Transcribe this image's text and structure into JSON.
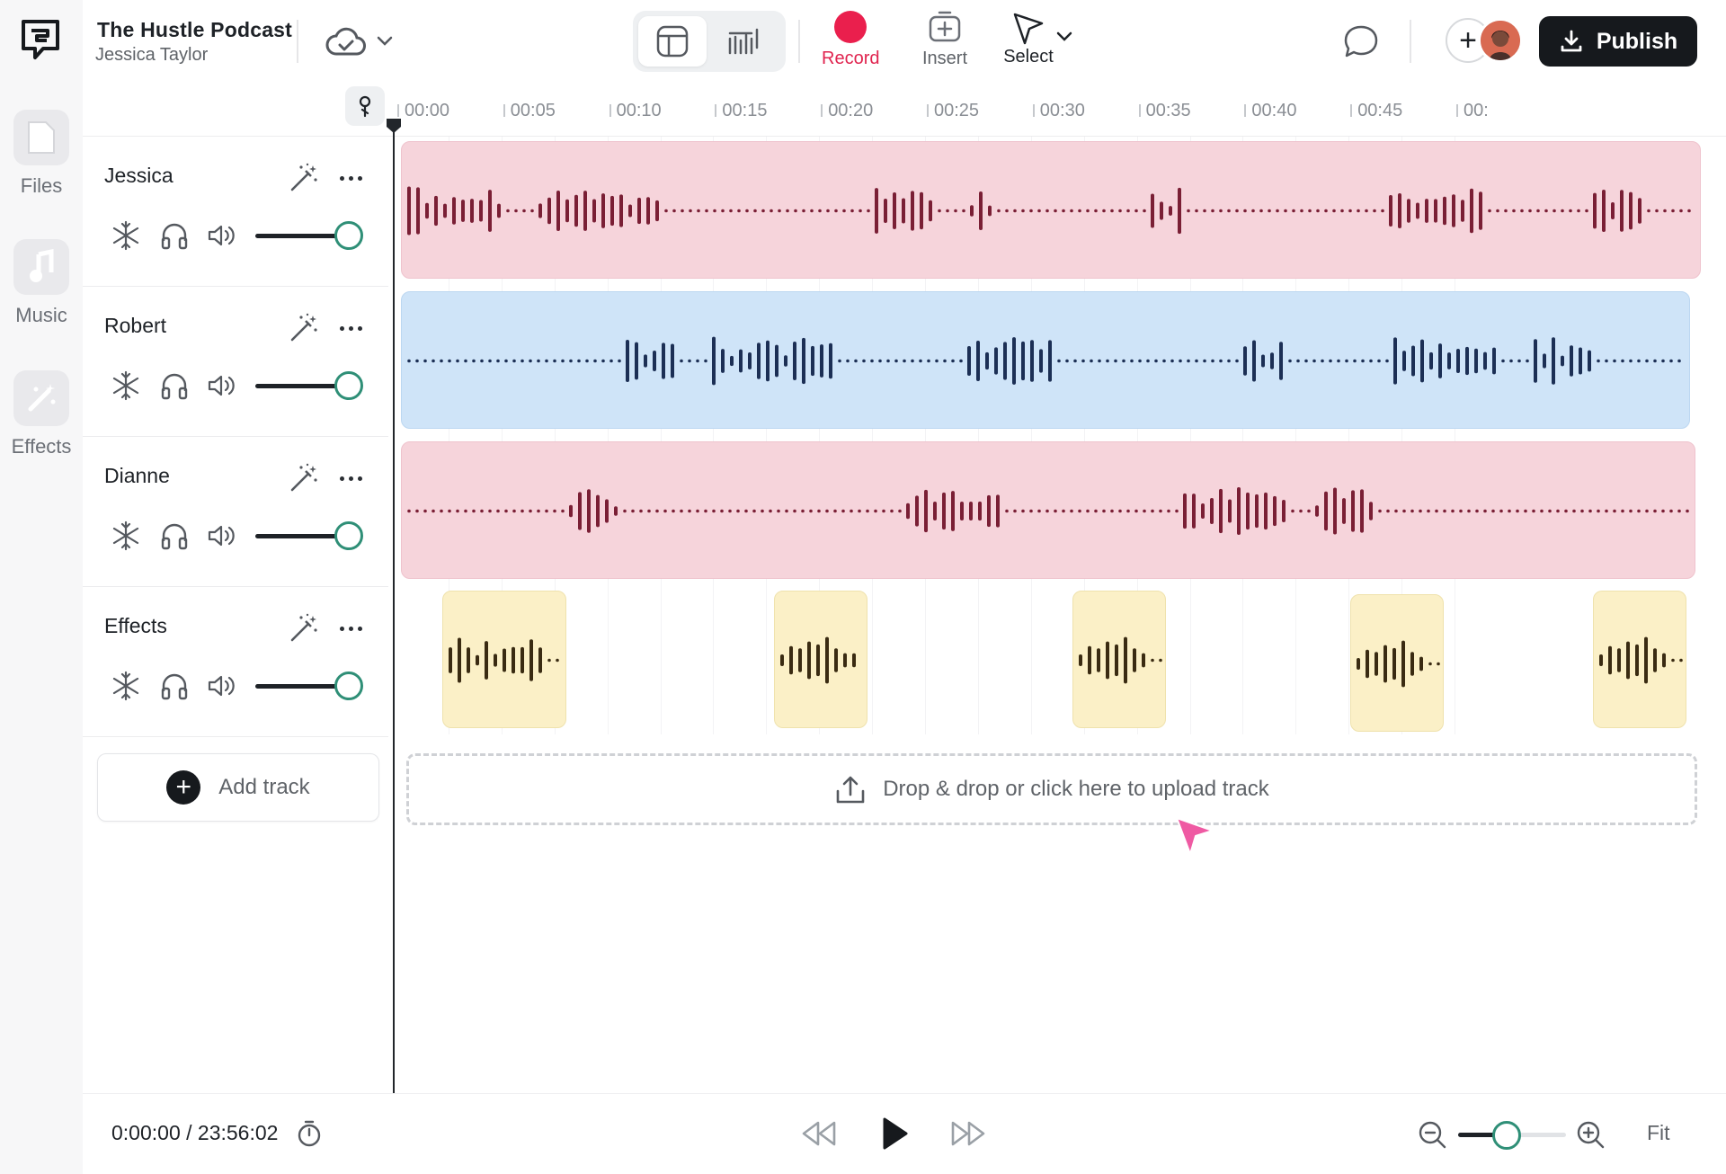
{
  "project": {
    "title": "The Hustle Podcast",
    "user": "Jessica Taylor"
  },
  "sidebar": {
    "items": [
      {
        "label": "Files",
        "icon": "file-icon"
      },
      {
        "label": "Music",
        "icon": "music-note-icon"
      },
      {
        "label": "Effects",
        "icon": "magic-wand-icon"
      }
    ]
  },
  "toolbar": {
    "record_label": "Record",
    "insert_label": "Insert",
    "select_label": "Select",
    "publish_label": "Publish"
  },
  "colors": {
    "record": "#ea1f4d",
    "accent": "#2f8f77",
    "voice_clip_pink": "#f6d4db",
    "voice_wave_pink": "#7a1f35",
    "voice_clip_blue": "#cfe4f8",
    "voice_wave_blue": "#1c2f55",
    "effect_clip": "#fbf0c7",
    "effect_wave": "#3a2b12"
  },
  "ruler": {
    "ticks": [
      "00:00",
      "00:05",
      "00:10",
      "00:15",
      "00:20",
      "00:25",
      "00:30",
      "00:35",
      "00:40",
      "00:45",
      "00:"
    ]
  },
  "tracks": [
    {
      "name": "Jessica",
      "volume": 1.0
    },
    {
      "name": "Robert",
      "volume": 1.0
    },
    {
      "name": "Dianne",
      "volume": 1.0
    },
    {
      "name": "Effects",
      "volume": 1.0
    }
  ],
  "add_track_label": "Add track",
  "dropzone_label": "Drop & drop or click here to upload track",
  "transport": {
    "timecode": "0:00:00 / 23:56:02",
    "fit_label": "Fit",
    "zoom_level": 0.35
  }
}
